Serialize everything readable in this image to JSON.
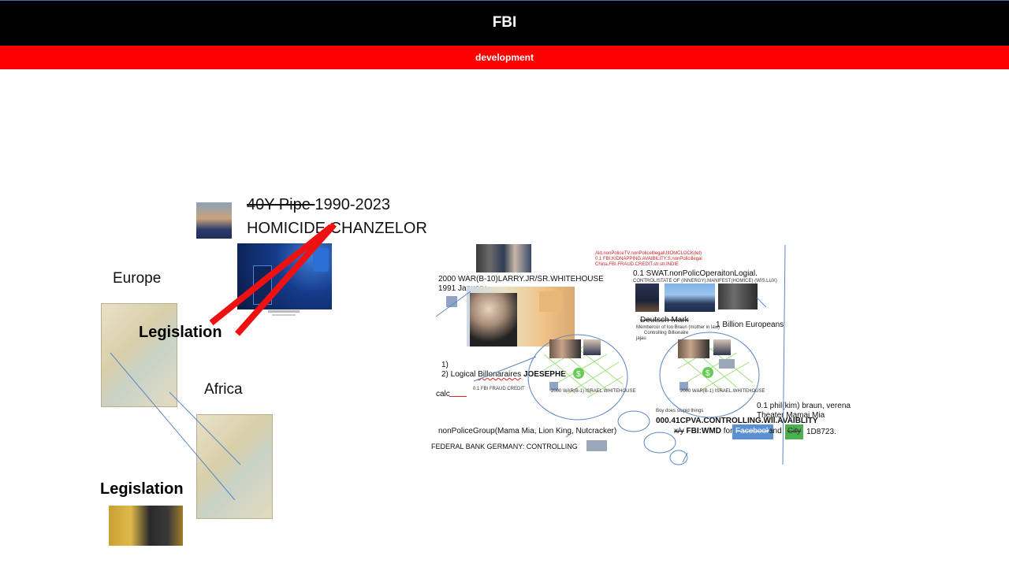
{
  "header": {
    "title": "FBI",
    "subtitle": "development"
  },
  "left": {
    "strike_prefix": "40Y Pipe ",
    "years": "1990-2023",
    "homicide": "HOMICIDE.CHANZELOR",
    "europe": "Europe",
    "africa": "Africa",
    "legislation_1": "Legislation",
    "legislation_2": "Legislation"
  },
  "right": {
    "war": "2000 WAR(B-10)LARRY.JR/SR.WHITEHOUSE",
    "january": "1991 January",
    "logical_1": "1)",
    "logical_2_prefix": "2) Logical ",
    "logical_2_mid": "Billonaraires",
    "logical_2_bold": " JOESEPHE",
    "calc": "calc",
    "swat": "0.1 SWAT.nonPolicOperaitonLogial.",
    "deutsch": "Deutsch Mark",
    "europeans": "1 Billion Europeans",
    "nonpolice": "nonPoliceGroup(Mama Mia, Lion King, Nutcracker)",
    "fed": "FEDERAL BANK GERMANY: CONTROLLING",
    "cpva": "000.41CPVA.CONTROLLING.WII.AVAIBLITY",
    "fbi_prefix": "x/y",
    "fbi_bold": " FBI:WMD",
    "fbi_for": " for ",
    "facebook": "Facebook",
    "and": " and ",
    "city": "City",
    "d8723": "1D8723.",
    "phil": "0.1 phil(kim) braun, verena",
    "theater": "Theater Mamai Mia",
    "small_red_1": "Ald.nonPoliceTV.nonPolicelllegalUltOMCLOCK(let)",
    "small_red_2": "0.1 FBI.KIDNAPPING.AVAIBILITY.S.nonPolicillegal",
    "small_red_3": "China.FBI.FRAUD.CREDIT.str.str.INDIE",
    "small_swat": "CONTROLISTATE OF (INNERGY).MANIFEST(HOMICE) (WIS.LUX)",
    "small_deutsch_1": "Membercor of Ion Braun (mother in law)",
    "small_deutsch_2": "Controlling Billionaire",
    "small_deutsch_3": "jajau",
    "circle_label": "2000 WAR(B-1) ISRAEL.WHITEHOUSE",
    "fraud": "0.1 FBI FRAUD CREDIT",
    "story": "Boy does stupid things"
  },
  "colors": {
    "header_bg": "#000000",
    "subbar_bg": "#ff0000",
    "circle_stroke": "#5b86c4",
    "x_red": "#ee1111",
    "facebook": "#5a8fd0",
    "city": "#4caf50"
  }
}
